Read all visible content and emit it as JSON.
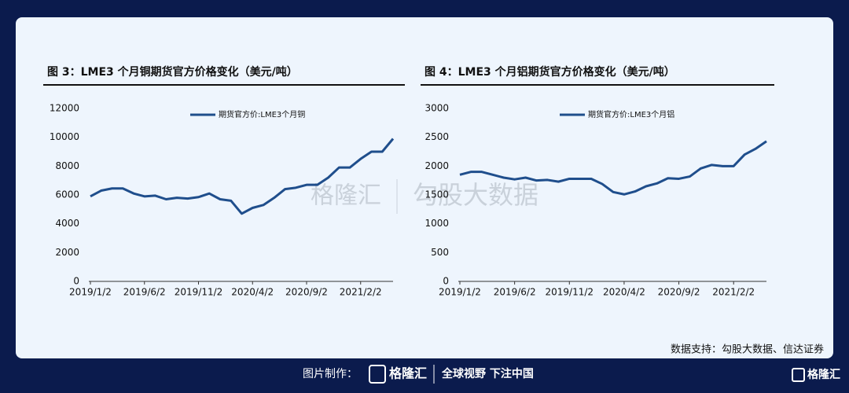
{
  "chart_data": [
    {
      "type": "line",
      "title": "图 3：LME3 个月铜期货官方价格变化（美元/吨）",
      "x": [
        "2019/1/2",
        "2019/2/2",
        "2019/3/2",
        "2019/4/2",
        "2019/5/2",
        "2019/6/2",
        "2019/7/2",
        "2019/8/2",
        "2019/9/2",
        "2019/10/2",
        "2019/11/2",
        "2019/12/2",
        "2020/1/2",
        "2020/2/2",
        "2020/3/2",
        "2020/4/2",
        "2020/5/2",
        "2020/6/2",
        "2020/7/2",
        "2020/8/2",
        "2020/9/2",
        "2020/10/2",
        "2020/11/2",
        "2020/12/2",
        "2021/1/2",
        "2021/2/2",
        "2021/3/2",
        "2021/4/2",
        "2021/5/2"
      ],
      "xticks": [
        "2019/1/2",
        "2019/6/2",
        "2019/11/2",
        "2020/4/2",
        "2020/9/2",
        "2021/2/2"
      ],
      "series": [
        {
          "name": "期货官方价:LME3个月铜",
          "color": "#1f4e8c",
          "values": [
            5900,
            6300,
            6450,
            6450,
            6100,
            5900,
            5950,
            5700,
            5800,
            5750,
            5850,
            6100,
            5700,
            5600,
            4700,
            5100,
            5300,
            5800,
            6400,
            6500,
            6700,
            6700,
            7200,
            7900,
            7900,
            8500,
            9000,
            9000,
            9900
          ]
        }
      ],
      "ylim": [
        0,
        12000
      ],
      "yticks": [
        0,
        2000,
        4000,
        6000,
        8000,
        10000,
        12000
      ]
    },
    {
      "type": "line",
      "title": "图 4：LME3 个月铝期货官方价格变化（美元/吨）",
      "x": [
        "2019/1/2",
        "2019/2/2",
        "2019/3/2",
        "2019/4/2",
        "2019/5/2",
        "2019/6/2",
        "2019/7/2",
        "2019/8/2",
        "2019/9/2",
        "2019/10/2",
        "2019/11/2",
        "2019/12/2",
        "2020/1/2",
        "2020/2/2",
        "2020/3/2",
        "2020/4/2",
        "2020/5/2",
        "2020/6/2",
        "2020/7/2",
        "2020/8/2",
        "2020/9/2",
        "2020/10/2",
        "2020/11/2",
        "2020/12/2",
        "2021/1/2",
        "2021/2/2",
        "2021/3/2",
        "2021/4/2",
        "2021/5/2"
      ],
      "xticks": [
        "2019/1/2",
        "2019/6/2",
        "2019/11/2",
        "2020/4/2",
        "2020/9/2",
        "2021/2/2"
      ],
      "series": [
        {
          "name": "期货官方价:LME3个月铝",
          "color": "#1f4e8c",
          "values": [
            1850,
            1900,
            1900,
            1850,
            1800,
            1770,
            1800,
            1750,
            1760,
            1730,
            1780,
            1780,
            1780,
            1690,
            1550,
            1510,
            1560,
            1650,
            1700,
            1790,
            1780,
            1820,
            1960,
            2020,
            2000,
            2000,
            2200,
            2300,
            2430
          ]
        }
      ],
      "ylim": [
        0,
        3000
      ],
      "yticks": [
        0,
        500,
        1000,
        1500,
        2000,
        2500,
        3000
      ]
    }
  ],
  "watermark": [
    "格隆汇",
    "勾股大数据"
  ],
  "source": "数据支持：勾股大数据、信达证券",
  "footer": {
    "made_by": "图片制作：",
    "brand": "格隆汇",
    "slogan": "全球视野 下注中国"
  }
}
